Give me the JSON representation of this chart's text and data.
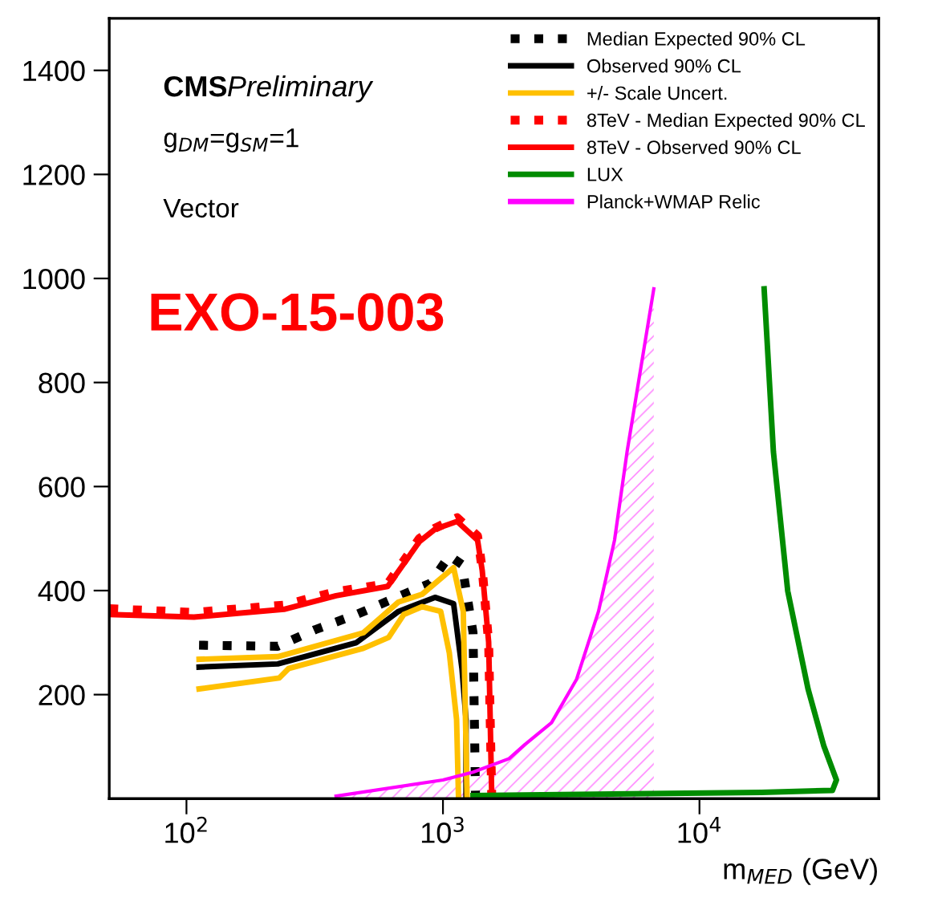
{
  "chart_data": {
    "type": "line",
    "xlabel": "m$_{MED}$ (GeV)",
    "log": "x",
    "xlim": [
      50,
      50000
    ],
    "xticks": [
      {
        "value": 100,
        "label": "10$^{2}$"
      },
      {
        "value": 1000,
        "label": "10$^{3}$"
      },
      {
        "value": 10000,
        "label": "10$^{4}$"
      }
    ],
    "ylim": [
      0,
      1500
    ],
    "yticks": [
      200,
      400,
      600,
      800,
      1000,
      1200,
      1400
    ],
    "grid": false,
    "legend": "top right",
    "marker": "none",
    "annotations": [
      "CMS",
      "Preliminary",
      "g$_{DM}$=g$_{SM}$=1",
      "Vector",
      "EXO-15-003"
    ],
    "series": [
      {
        "name": "Median Expected 90% CL",
        "color": "#000000",
        "line_style": "dotted",
        "x": [
          112,
          227,
          318,
          460,
          703,
          893,
          1059,
          1186,
          1310,
          1340
        ],
        "values": [
          295,
          293,
          325,
          354,
          393,
          414,
          467,
          450,
          319,
          0
        ]
      },
      {
        "name": "Observed 90% CL",
        "color": "#000000",
        "line_style": "solid",
        "x": [
          112,
          227,
          460,
          671,
          931,
          1100,
          1186,
          1230,
          1230
        ],
        "values": [
          253,
          259,
          300,
          360,
          387,
          375,
          250,
          152,
          0
        ]
      },
      {
        "name": "+/- Scale Uncert.",
        "color": "#ffc000",
        "line_style": "solid",
        "x": [
          112,
          227,
          490,
          671,
          830,
          1100,
          1200,
          1242
        ],
        "values": [
          268,
          273,
          319,
          378,
          393,
          444,
          360,
          0
        ]
      },
      {
        "color": "#ffc000",
        "line_style": "solid",
        "x": [
          112,
          230,
          250,
          490,
          614,
          703,
          830,
          980,
          1059,
          1130,
          1150
        ],
        "values": [
          211,
          232,
          250,
          289,
          310,
          354,
          369,
          360,
          280,
          152,
          0
        ]
      },
      {
        "name": "8TeV - Median Expected 90% CL",
        "color": "#ff0000",
        "line_style": "dotted",
        "x": [
          50,
          107,
          240,
          383,
          609,
          809,
          931,
          1135,
          1364,
          1423,
          1507,
          1550
        ],
        "values": [
          365,
          358,
          372,
          398,
          413,
          500,
          520,
          540,
          505,
          440,
          300,
          0
        ]
      },
      {
        "name": "8TeV - Observed 90% CL",
        "color": "#ff0000",
        "line_style": "solid",
        "x": [
          50,
          107,
          240,
          383,
          609,
          809,
          931,
          1135,
          1364,
          1423,
          1507,
          1550
        ],
        "values": [
          354,
          349,
          364,
          390,
          408,
          494,
          518,
          533,
          497,
          438,
          301,
          0
        ]
      },
      {
        "name": "LUX",
        "color": "#008c00",
        "line_style": "solid",
        "x": [
          17870,
          19420,
          22090,
          26500,
          30550,
          34200,
          33000,
          17400,
          1310
        ],
        "values": [
          980,
          667,
          399,
          211,
          101,
          36,
          16,
          12,
          6
        ]
      },
      {
        "name": "Planck+WMAP Relic",
        "type": "area",
        "color": "#ff00ff",
        "line_style": "solid",
        "x": [
          383,
          1000,
          1310,
          1811,
          2086,
          2650,
          3315,
          4040,
          4666,
          5222,
          6637
        ],
        "values": [
          5,
          36,
          51,
          77,
          104,
          146,
          229,
          360,
          497,
          667,
          980
        ]
      }
    ]
  }
}
